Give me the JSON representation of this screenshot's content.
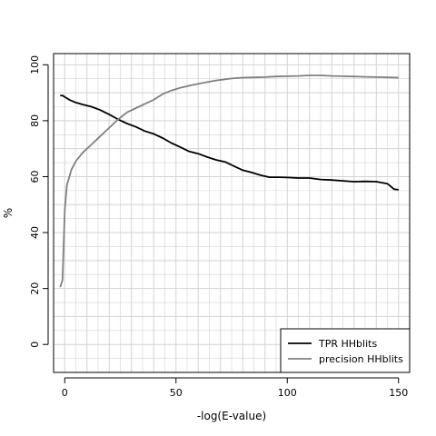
{
  "chart_data": {
    "type": "line",
    "title": "",
    "xlabel": "-log(E-value)",
    "ylabel": "%",
    "xlim": [
      -5,
      155
    ],
    "ylim": [
      -10,
      104
    ],
    "xticks": [
      0,
      50,
      100,
      150
    ],
    "yticks": [
      0,
      20,
      40,
      60,
      80,
      100
    ],
    "grid": true,
    "legend_position": "bottom-right",
    "colors": {
      "grid": "#d3d3d3",
      "axis": "#000000"
    },
    "series": [
      {
        "name": "TPR HHblits",
        "color": "#000000",
        "x": [
          -2,
          -1,
          0,
          2,
          5,
          8,
          12,
          16,
          20,
          24,
          28,
          32,
          36,
          40,
          44,
          48,
          52,
          56,
          60,
          64,
          68,
          72,
          76,
          80,
          84,
          88,
          92,
          96,
          100,
          105,
          110,
          115,
          120,
          125,
          130,
          135,
          140,
          145,
          148,
          150
        ],
        "y": [
          89,
          89,
          88.5,
          87.5,
          86.5,
          85.8,
          85,
          83.8,
          82.2,
          80.5,
          79,
          77.8,
          76.3,
          75.3,
          73.8,
          72,
          70.5,
          69,
          68.2,
          67,
          66,
          65.3,
          63.8,
          62.3,
          61.5,
          60.5,
          59.8,
          59.8,
          59.7,
          59.5,
          59.5,
          59,
          58.8,
          58.5,
          58.2,
          58.3,
          58.2,
          57.5,
          55.5,
          55.3
        ]
      },
      {
        "name": "precision HHblits",
        "color": "#808080",
        "x": [
          -2,
          -1,
          0,
          1,
          3,
          5,
          8,
          12,
          16,
          20,
          24,
          28,
          32,
          36,
          40,
          44,
          48,
          52,
          56,
          60,
          64,
          68,
          72,
          76,
          80,
          85,
          90,
          95,
          100,
          105,
          110,
          115,
          120,
          125,
          130,
          135,
          140,
          145,
          150
        ],
        "y": [
          20.5,
          23,
          48,
          57,
          62.5,
          65.5,
          68.5,
          71.5,
          74.5,
          77.5,
          80.5,
          83,
          84.5,
          86,
          87.5,
          89.5,
          90.8,
          91.8,
          92.5,
          93.2,
          93.8,
          94.4,
          94.8,
          95.2,
          95.4,
          95.5,
          95.6,
          95.8,
          95.9,
          96,
          96.2,
          96.2,
          96,
          95.9,
          95.8,
          95.7,
          95.6,
          95.5,
          95.4
        ]
      }
    ]
  }
}
